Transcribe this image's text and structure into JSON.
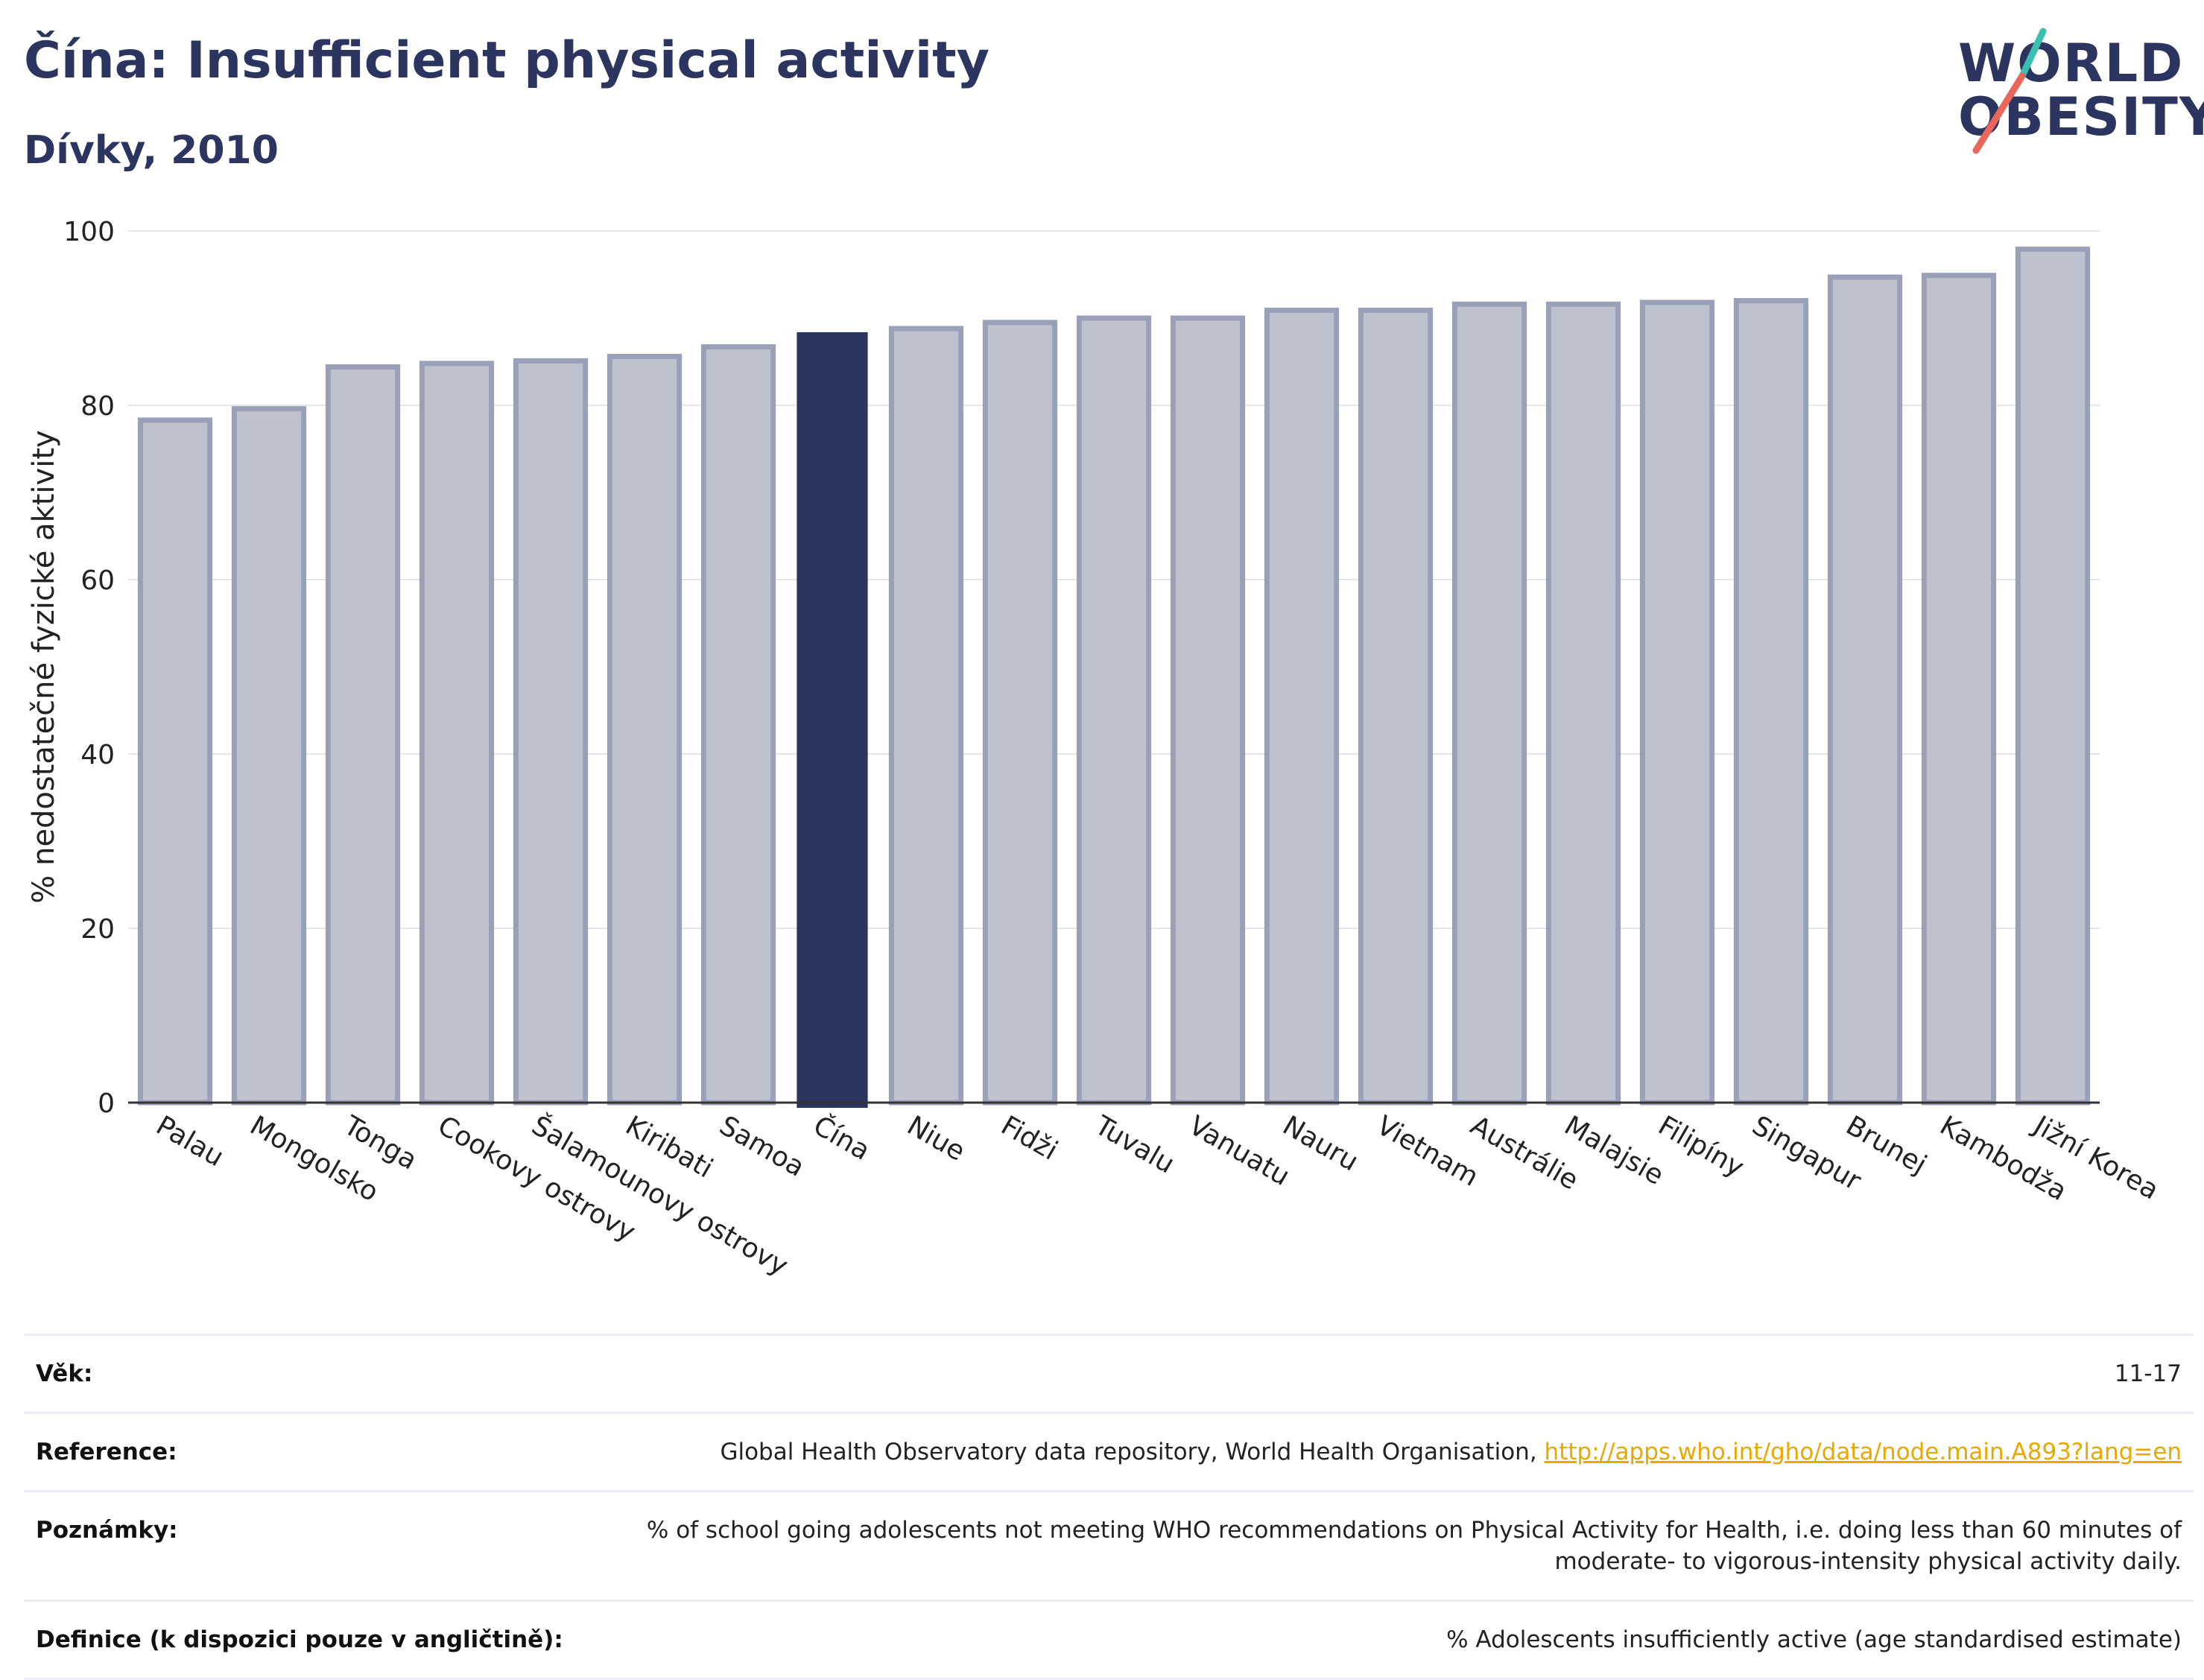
{
  "header": {
    "title": "Čína: Insufficient physical activity",
    "subtitle": "Dívky, 2010"
  },
  "logo": {
    "line1": "WORLD",
    "line2": "OBESITY",
    "accent_teal": "#3bbfb0",
    "accent_red": "#e8675a"
  },
  "chart_data": {
    "type": "bar",
    "ylabel": "% nedostatečné fyzické aktivity",
    "ylim": [
      0,
      100
    ],
    "yticks": [
      0,
      20,
      40,
      60,
      80,
      100
    ],
    "grid": true,
    "categories": [
      "Palau",
      "Mongolsko",
      "Tonga",
      "Cookovy ostrovy",
      "Šalamounovy ostrovy",
      "Kiribati",
      "Samoa",
      "Čína",
      "Niue",
      "Fidži",
      "Tuvalu",
      "Vanuatu",
      "Nauru",
      "Vietnam",
      "Austrálie",
      "Malajsie",
      "Filipíny",
      "Singapur",
      "Brunej",
      "Kambodža",
      "Jižní Korea"
    ],
    "values": [
      78.3,
      79.6,
      84.4,
      84.8,
      85.1,
      85.6,
      86.7,
      88.3,
      88.8,
      89.5,
      90.0,
      90.0,
      90.9,
      90.9,
      91.6,
      91.6,
      91.8,
      92.0,
      94.7,
      94.9,
      97.9
    ],
    "highlight": "Čína",
    "highlight_color": "#2b3560",
    "bar_color": "#bec1ce",
    "bar_border_color": "#9aa0b8"
  },
  "meta": {
    "age_label": "Věk:",
    "age_value": "11-17",
    "reference_label": "Reference:",
    "reference_text": "Global Health Observatory data repository, World Health Organisation, ",
    "reference_link": "http://apps.who.int/gho/data/node.main.A893?lang=en",
    "notes_label": "Poznámky:",
    "notes_value": "% of school going adolescents not meeting WHO recommendations on Physical Activity for Health, i.e. doing less than 60 minutes of moderate- to vigorous-intensity physical activity daily.",
    "definition_label": "Definice (k dispozici pouze v angličtině):",
    "definition_value": "% Adolescents insufficiently active (age standardised estimate)"
  }
}
